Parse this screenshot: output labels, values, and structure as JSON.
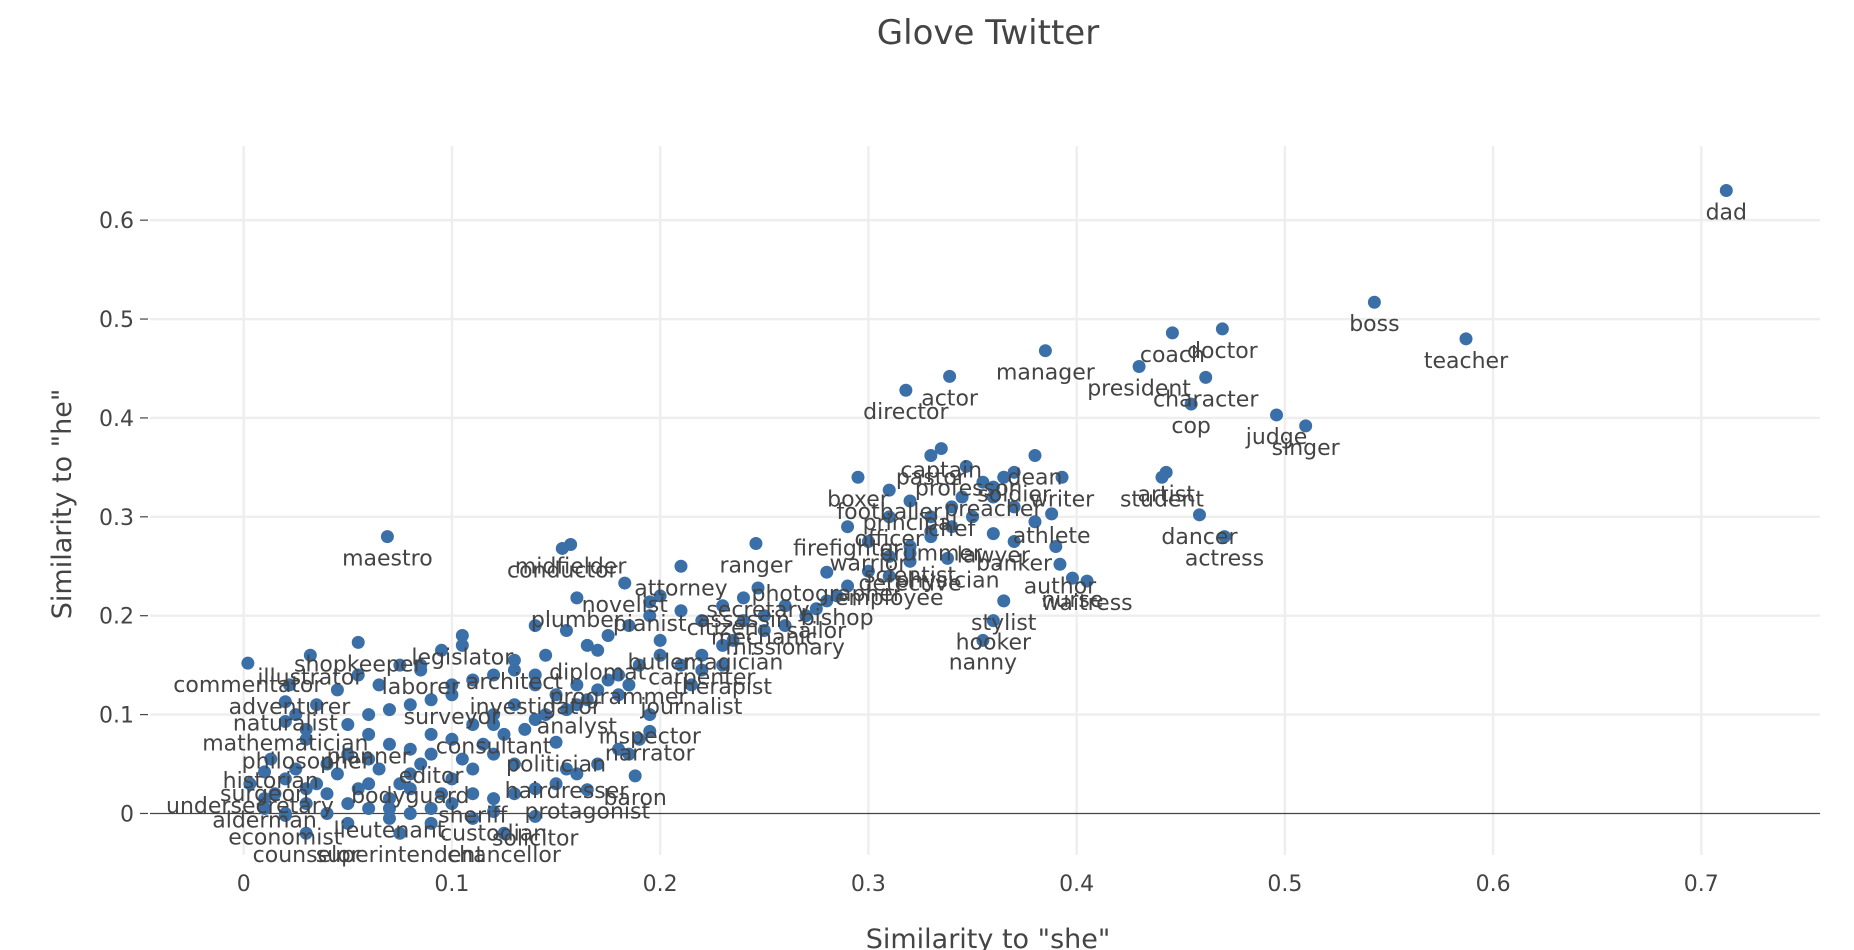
{
  "chart_data": {
    "type": "scatter",
    "title": "Glove Twitter",
    "xlabel": "Similarity to \"she\"",
    "ylabel": "Similarity to \"he\"",
    "xlim": [
      -0.045,
      0.757
    ],
    "ylim": [
      -0.042,
      0.675
    ],
    "x_ticks": [
      0,
      0.1,
      0.2,
      0.3,
      0.4,
      0.5,
      0.6,
      0.7
    ],
    "y_ticks": [
      0,
      0.1,
      0.2,
      0.3,
      0.4,
      0.5,
      0.6
    ],
    "x_tick_labels": [
      "0",
      "0.1",
      "0.2",
      "0.3",
      "0.4",
      "0.5",
      "0.6",
      "0.7"
    ],
    "y_tick_labels": [
      "0",
      "0.1",
      "0.2",
      "0.3",
      "0.4",
      "0.5",
      "0.6"
    ],
    "grid": true,
    "marker_color": "#3a6fa8",
    "points": [
      {
        "label": "dad",
        "x": 0.712,
        "y": 0.63
      },
      {
        "label": "boss",
        "x": 0.543,
        "y": 0.517
      },
      {
        "label": "teacher",
        "x": 0.587,
        "y": 0.48
      },
      {
        "label": "doctor",
        "x": 0.47,
        "y": 0.49
      },
      {
        "label": "coach",
        "x": 0.446,
        "y": 0.486
      },
      {
        "label": "manager",
        "x": 0.385,
        "y": 0.468
      },
      {
        "label": "president",
        "x": 0.43,
        "y": 0.452
      },
      {
        "label": "character",
        "x": 0.462,
        "y": 0.441
      },
      {
        "label": "actor",
        "x": 0.339,
        "y": 0.442
      },
      {
        "label": "director",
        "x": 0.318,
        "y": 0.428
      },
      {
        "label": "cop",
        "x": 0.455,
        "y": 0.414
      },
      {
        "label": "judge",
        "x": 0.496,
        "y": 0.403
      },
      {
        "label": "singer",
        "x": 0.51,
        "y": 0.392
      },
      {
        "label": "captain",
        "x": 0.335,
        "y": 0.369
      },
      {
        "label": "dean",
        "x": 0.38,
        "y": 0.362
      },
      {
        "label": "pastor",
        "x": 0.33,
        "y": 0.362
      },
      {
        "label": "professor",
        "x": 0.347,
        "y": 0.351
      },
      {
        "label": "artist",
        "x": 0.443,
        "y": 0.345
      },
      {
        "label": "student",
        "x": 0.441,
        "y": 0.34
      },
      {
        "label": "boxer",
        "x": 0.295,
        "y": 0.34
      },
      {
        "label": "writer",
        "x": 0.393,
        "y": 0.34
      },
      {
        "label": "footballer",
        "x": 0.31,
        "y": 0.327
      },
      {
        "label": "principal",
        "x": 0.32,
        "y": 0.316
      },
      {
        "label": "athlete",
        "x": 0.388,
        "y": 0.303
      },
      {
        "label": "dancer",
        "x": 0.459,
        "y": 0.302
      },
      {
        "label": "actress",
        "x": 0.471,
        "y": 0.28
      },
      {
        "label": "drummer",
        "x": 0.33,
        "y": 0.285
      },
      {
        "label": "lawyer",
        "x": 0.36,
        "y": 0.283
      },
      {
        "label": "banker",
        "x": 0.37,
        "y": 0.275
      },
      {
        "label": "scientist",
        "x": 0.32,
        "y": 0.263
      },
      {
        "label": "physician",
        "x": 0.338,
        "y": 0.258
      },
      {
        "label": "author",
        "x": 0.392,
        "y": 0.252
      },
      {
        "label": "nurse",
        "x": 0.398,
        "y": 0.238
      },
      {
        "label": "waitress",
        "x": 0.405,
        "y": 0.235
      },
      {
        "label": "maestro",
        "x": 0.069,
        "y": 0.28
      },
      {
        "label": "ranger",
        "x": 0.246,
        "y": 0.273
      },
      {
        "label": "midfielder",
        "x": 0.157,
        "y": 0.272
      },
      {
        "label": "conductor",
        "x": 0.153,
        "y": 0.268
      },
      {
        "label": "attorney",
        "x": 0.21,
        "y": 0.25
      },
      {
        "label": "photographer",
        "x": 0.28,
        "y": 0.244
      },
      {
        "label": "employee",
        "x": 0.31,
        "y": 0.24
      },
      {
        "label": "stylist",
        "x": 0.365,
        "y": 0.215
      },
      {
        "label": "hooker",
        "x": 0.36,
        "y": 0.195
      },
      {
        "label": "nanny",
        "x": 0.355,
        "y": 0.175
      },
      {
        "label": "novelist",
        "x": 0.183,
        "y": 0.233
      },
      {
        "label": "secretary",
        "x": 0.247,
        "y": 0.228
      },
      {
        "label": "bishop",
        "x": 0.285,
        "y": 0.22
      },
      {
        "label": "assassin",
        "x": 0.24,
        "y": 0.218
      },
      {
        "label": "sailor",
        "x": 0.275,
        "y": 0.207
      },
      {
        "label": "plumber",
        "x": 0.16,
        "y": 0.218
      },
      {
        "label": "pianist",
        "x": 0.195,
        "y": 0.214
      },
      {
        "label": "citizen",
        "x": 0.23,
        "y": 0.21
      },
      {
        "label": "missionary",
        "x": 0.26,
        "y": 0.19
      },
      {
        "label": "magician",
        "x": 0.235,
        "y": 0.175
      },
      {
        "label": "legislator",
        "x": 0.105,
        "y": 0.18
      },
      {
        "label": "shopkeeper",
        "x": 0.055,
        "y": 0.173
      },
      {
        "label": "illustrator",
        "x": 0.032,
        "y": 0.16
      },
      {
        "label": "laborer",
        "x": 0.085,
        "y": 0.15
      },
      {
        "label": "therapist",
        "x": 0.23,
        "y": 0.15
      },
      {
        "label": "commentator",
        "x": 0.002,
        "y": 0.152
      },
      {
        "label": "adventurer",
        "x": 0.022,
        "y": 0.13
      },
      {
        "label": "journalist",
        "x": 0.215,
        "y": 0.13
      },
      {
        "label": "inspector",
        "x": 0.195,
        "y": 0.1
      },
      {
        "label": "narrator",
        "x": 0.195,
        "y": 0.083
      },
      {
        "label": "naturalist",
        "x": 0.02,
        "y": 0.113
      },
      {
        "label": "mathematician",
        "x": 0.02,
        "y": 0.093
      },
      {
        "label": "politician",
        "x": 0.15,
        "y": 0.072
      },
      {
        "label": "philosopher",
        "x": 0.03,
        "y": 0.075
      },
      {
        "label": "historian",
        "x": 0.013,
        "y": 0.055
      },
      {
        "label": "hairdresser",
        "x": 0.155,
        "y": 0.045
      },
      {
        "label": "baron",
        "x": 0.188,
        "y": 0.038
      },
      {
        "label": "protagonist",
        "x": 0.165,
        "y": 0.024
      },
      {
        "label": "surgeon",
        "x": 0.01,
        "y": 0.042
      },
      {
        "label": "undersecretary",
        "x": 0.003,
        "y": 0.03
      },
      {
        "label": "alderman",
        "x": 0.01,
        "y": 0.015
      },
      {
        "label": "economist",
        "x": 0.02,
        "y": -0.002
      },
      {
        "label": "custodian",
        "x": 0.12,
        "y": 0.002
      },
      {
        "label": "counselor",
        "x": 0.03,
        "y": -0.02
      },
      {
        "label": "superintendent",
        "x": 0.075,
        "y": -0.02
      },
      {
        "label": "chancellor",
        "x": 0.125,
        "y": -0.02
      },
      {
        "label": "lieutenant",
        "x": 0.07,
        "y": 0.005
      },
      {
        "label": "solicitor",
        "x": 0.14,
        "y": -0.003
      },
      {
        "label": "sheriff",
        "x": 0.11,
        "y": 0.02
      },
      {
        "label": "bodyguard",
        "x": 0.08,
        "y": 0.04
      },
      {
        "label": "editor",
        "x": 0.09,
        "y": 0.06
      },
      {
        "label": "planner",
        "x": 0.06,
        "y": 0.08
      },
      {
        "label": "consultant",
        "x": 0.12,
        "y": 0.09
      },
      {
        "label": "analyst",
        "x": 0.16,
        "y": 0.11
      },
      {
        "label": "investigator",
        "x": 0.14,
        "y": 0.13
      },
      {
        "label": "programmer",
        "x": 0.18,
        "y": 0.14
      },
      {
        "label": "surveyor",
        "x": 0.1,
        "y": 0.12
      },
      {
        "label": "architect",
        "x": 0.13,
        "y": 0.155
      },
      {
        "label": "diplomat",
        "x": 0.17,
        "y": 0.165
      },
      {
        "label": "butler",
        "x": 0.2,
        "y": 0.175
      },
      {
        "label": "carpenter",
        "x": 0.22,
        "y": 0.16
      },
      {
        "label": "mechanic",
        "x": 0.25,
        "y": 0.2
      },
      {
        "label": "firefighter",
        "x": 0.29,
        "y": 0.29
      },
      {
        "label": "officer",
        "x": 0.31,
        "y": 0.3
      },
      {
        "label": "chef",
        "x": 0.34,
        "y": 0.31
      },
      {
        "label": "preacher",
        "x": 0.36,
        "y": 0.33
      },
      {
        "label": "soldier",
        "x": 0.37,
        "y": 0.345
      },
      {
        "label": "warrior",
        "x": 0.3,
        "y": 0.275
      },
      {
        "label": "detective",
        "x": 0.32,
        "y": 0.255
      }
    ],
    "dot_only": [
      [
        0.04,
        0.02
      ],
      [
        0.05,
        0.01
      ],
      [
        0.06,
        0.03
      ],
      [
        0.07,
        0.015
      ],
      [
        0.08,
        0.025
      ],
      [
        0.09,
        0.005
      ],
      [
        0.1,
        0.035
      ],
      [
        0.11,
        0.045
      ],
      [
        0.12,
        0.06
      ],
      [
        0.13,
        0.05
      ],
      [
        0.04,
        0.05
      ],
      [
        0.05,
        0.06
      ],
      [
        0.06,
        0.055
      ],
      [
        0.07,
        0.07
      ],
      [
        0.08,
        0.065
      ],
      [
        0.09,
        0.08
      ],
      [
        0.1,
        0.075
      ],
      [
        0.11,
        0.09
      ],
      [
        0.12,
        0.1
      ],
      [
        0.13,
        0.11
      ],
      [
        0.14,
        0.095
      ],
      [
        0.15,
        0.12
      ],
      [
        0.16,
        0.13
      ],
      [
        0.17,
        0.125
      ],
      [
        0.18,
        0.12
      ],
      [
        0.19,
        0.15
      ],
      [
        0.2,
        0.16
      ],
      [
        0.21,
        0.15
      ],
      [
        0.22,
        0.145
      ],
      [
        0.23,
        0.17
      ],
      [
        0.03,
        0.085
      ],
      [
        0.025,
        0.1
      ],
      [
        0.035,
        0.11
      ],
      [
        0.045,
        0.125
      ],
      [
        0.055,
        0.14
      ],
      [
        0.065,
        0.13
      ],
      [
        0.075,
        0.15
      ],
      [
        0.085,
        0.145
      ],
      [
        0.095,
        0.165
      ],
      [
        0.105,
        0.17
      ],
      [
        0.015,
        0.02
      ],
      [
        0.02,
        0.035
      ],
      [
        0.025,
        0.045
      ],
      [
        0.03,
        0.01
      ],
      [
        0.035,
        0.03
      ],
      [
        0.045,
        0.04
      ],
      [
        0.055,
        0.025
      ],
      [
        0.065,
        0.045
      ],
      [
        0.075,
        0.03
      ],
      [
        0.085,
        0.05
      ],
      [
        0.095,
        0.02
      ],
      [
        0.105,
        0.055
      ],
      [
        0.115,
        0.07
      ],
      [
        0.125,
        0.08
      ],
      [
        0.135,
        0.085
      ],
      [
        0.145,
        0.1
      ],
      [
        0.155,
        0.105
      ],
      [
        0.165,
        0.115
      ],
      [
        0.175,
        0.135
      ],
      [
        0.185,
        0.13
      ],
      [
        0.14,
        0.19
      ],
      [
        0.145,
        0.16
      ],
      [
        0.155,
        0.185
      ],
      [
        0.165,
        0.17
      ],
      [
        0.175,
        0.18
      ],
      [
        0.185,
        0.19
      ],
      [
        0.195,
        0.2
      ],
      [
        0.2,
        0.22
      ],
      [
        0.21,
        0.205
      ],
      [
        0.22,
        0.195
      ],
      [
        0.24,
        0.195
      ],
      [
        0.25,
        0.185
      ],
      [
        0.26,
        0.21
      ],
      [
        0.27,
        0.2
      ],
      [
        0.28,
        0.215
      ],
      [
        0.29,
        0.23
      ],
      [
        0.3,
        0.245
      ],
      [
        0.31,
        0.26
      ],
      [
        0.32,
        0.27
      ],
      [
        0.33,
        0.28
      ],
      [
        0.34,
        0.29
      ],
      [
        0.35,
        0.3
      ],
      [
        0.36,
        0.32
      ],
      [
        0.37,
        0.31
      ],
      [
        0.38,
        0.295
      ],
      [
        0.39,
        0.27
      ],
      [
        0.33,
        0.3
      ],
      [
        0.345,
        0.32
      ],
      [
        0.355,
        0.335
      ],
      [
        0.365,
        0.34
      ],
      [
        0.05,
        0.09
      ],
      [
        0.06,
        0.1
      ],
      [
        0.07,
        0.105
      ],
      [
        0.08,
        0.11
      ],
      [
        0.09,
        0.115
      ],
      [
        0.1,
        0.13
      ],
      [
        0.11,
        0.135
      ],
      [
        0.12,
        0.14
      ],
      [
        0.13,
        0.145
      ],
      [
        0.14,
        0.14
      ],
      [
        0.01,
        0.005
      ],
      [
        0.02,
        0.0
      ],
      [
        0.03,
        0.025
      ],
      [
        0.04,
        0.0
      ],
      [
        0.05,
        -0.01
      ],
      [
        0.06,
        0.005
      ],
      [
        0.07,
        -0.005
      ],
      [
        0.08,
        0.0
      ],
      [
        0.09,
        -0.01
      ],
      [
        0.1,
        0.01
      ],
      [
        0.11,
        -0.005
      ],
      [
        0.12,
        0.015
      ],
      [
        0.13,
        0.02
      ],
      [
        0.14,
        0.025
      ],
      [
        0.15,
        0.03
      ],
      [
        0.16,
        0.04
      ],
      [
        0.17,
        0.05
      ],
      [
        0.18,
        0.065
      ],
      [
        0.185,
        0.06
      ],
      [
        0.19,
        0.075
      ]
    ]
  }
}
